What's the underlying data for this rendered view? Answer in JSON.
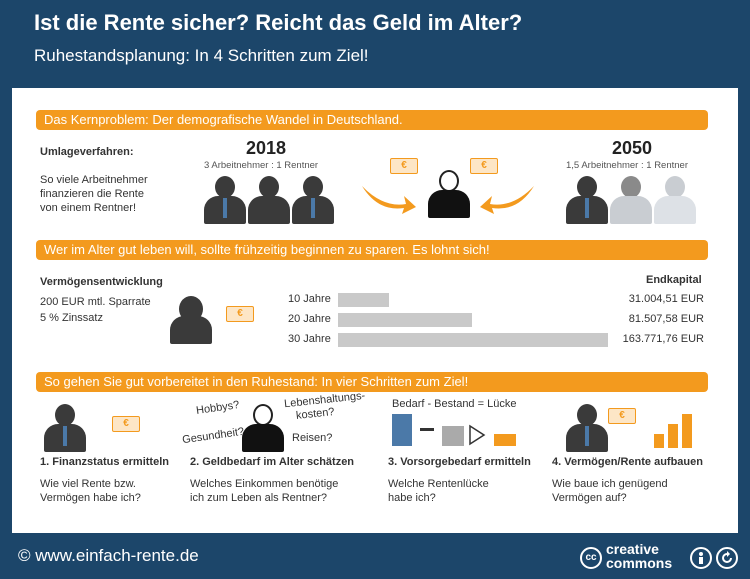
{
  "header": {
    "title": "Ist die Rente sicher? Reicht das Geld im Alter?",
    "subtitle": "Ruhestandsplanung: In 4 Schritten zum Ziel!"
  },
  "section1": {
    "banner": "Das Kernproblem: Der demografische Wandel in Deutschland.",
    "label": "Umlageverfahren:",
    "description": [
      "So viele Arbeitnehmer",
      "finanzieren die Rente",
      "von einem Rentner!"
    ],
    "year_left": "2018",
    "ratio_left": "3 Arbeitnehmer : 1 Rentner",
    "year_right": "2050",
    "ratio_right": "1,5 Arbeitnehmer : 1 Rentner"
  },
  "section2": {
    "banner": "Wer im Alter gut leben will, sollte frühzeitig beginnen zu sparen. Es lohnt sich!",
    "label": "Vermögensentwicklung",
    "rate": "200 EUR mtl. Sparrate",
    "interest": "5 % Zinssatz",
    "end_label": "Endkapital",
    "rows": [
      {
        "period": "10 Jahre",
        "amount": "31.004,51 EUR",
        "value": 31004.51
      },
      {
        "period": "20 Jahre",
        "amount": "81.507,58 EUR",
        "value": 81507.58
      },
      {
        "period": "30 Jahre",
        "amount": "163.771,76 EUR",
        "value": 163771.76
      }
    ]
  },
  "section3": {
    "banner": "So gehen Sie gut vorbereitet in den Ruhestand: In vier Schritten zum Ziel!",
    "formula": "Bedarf - Bestand = Lücke",
    "bubbles": {
      "hobbys": "Hobbys?",
      "lebens1": "Lebenshaltungs-",
      "lebens2": "kosten?",
      "gesundheit": "Gesundheit?",
      "reisen": "Reisen?"
    },
    "steps": [
      {
        "title": "1. Finanzstatus ermitteln",
        "text1": "Wie viel Rente bzw.",
        "text2": "Vermögen habe ich?"
      },
      {
        "title": "2. Geldbedarf im Alter schätzen",
        "text1": "Welches Einkommen benötige",
        "text2": "ich zum Leben als Rentner?"
      },
      {
        "title": "3. Vorsorgebedarf ermitteln",
        "text1": "Welche Rentenlücke",
        "text2": "habe ich?"
      },
      {
        "title": "4. Vermögen/Rente aufbauen",
        "text1": "Wie baue ich genügend",
        "text2": "Vermögen auf?"
      }
    ]
  },
  "footer": {
    "url": "© www.einfach-rente.de",
    "cc_mark": "cc",
    "cc_line1": "creative",
    "cc_line2": "commons"
  },
  "colors": {
    "navy": "#1c466a",
    "orange": "#f39a1e",
    "person_dark": "#3a3a3a",
    "person_mid": "#7a7a7a",
    "person_light": "#c9cdd2",
    "tie_blue": "#4b79a8"
  }
}
